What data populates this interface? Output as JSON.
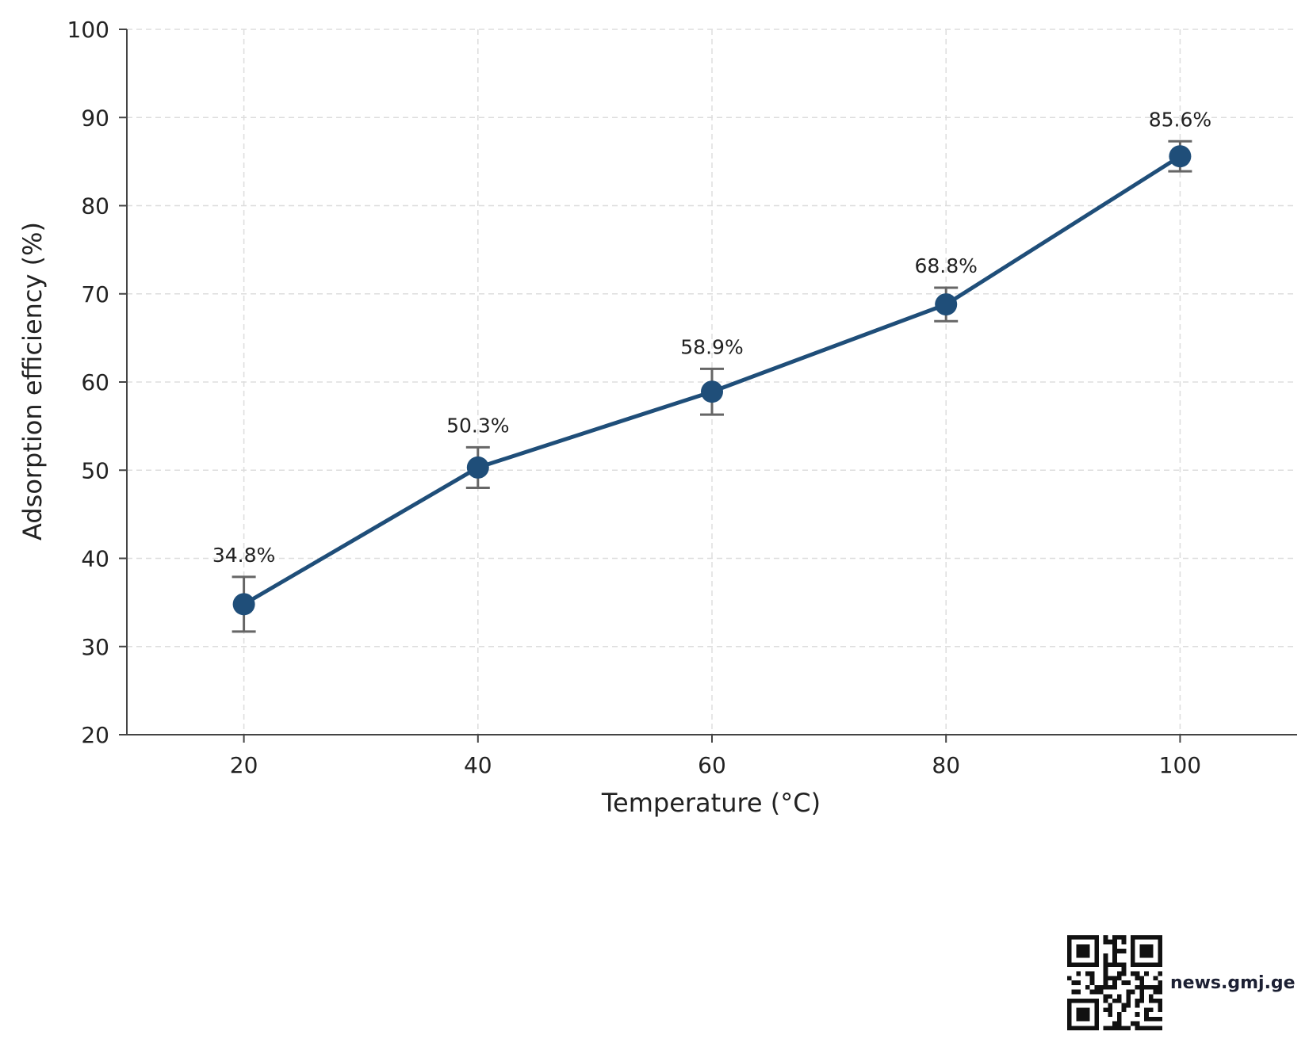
{
  "chart_data": {
    "type": "line",
    "xlabel": "Temperature (°C)",
    "ylabel": "Adsorption efficiency (%)",
    "xlim": [
      10,
      110
    ],
    "ylim": [
      20,
      100
    ],
    "x_ticks": [
      20,
      40,
      60,
      80,
      100
    ],
    "y_ticks": [
      20,
      30,
      40,
      50,
      60,
      70,
      80,
      90,
      100
    ],
    "grid": true,
    "series": [
      {
        "x": [
          20,
          40,
          60,
          80,
          100
        ],
        "y": [
          34.8,
          50.3,
          58.9,
          68.8,
          85.6
        ],
        "error": [
          3.1,
          2.3,
          2.6,
          1.9,
          1.7
        ],
        "point_labels": [
          "34.8%",
          "50.3%",
          "58.9%",
          "68.8%",
          "85.6%"
        ],
        "color": "#1f4e79"
      }
    ],
    "error_bar_color": "#666666",
    "grid_color": "#dddddd",
    "axis_color": "#444444"
  },
  "source": {
    "text": "news.gmj.ge"
  }
}
